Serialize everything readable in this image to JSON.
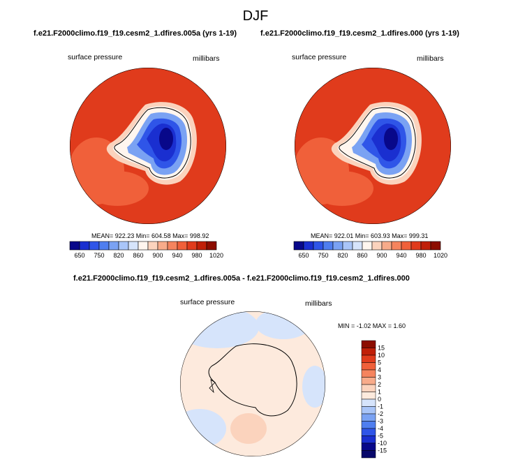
{
  "season": "DJF",
  "top_left": {
    "title": "f.e21.F2000climo.f19_f19.cesm2_1.dfires.005a (yrs 1-19)",
    "variable": "surface pressure",
    "units": "millibars",
    "stats": "MEAN= 922.23   Min= 604.58   Max= 998.92"
  },
  "top_right": {
    "title": "f.e21.F2000climo.f19_f19.cesm2_1.dfires.000 (yrs 1-19)",
    "variable": "surface pressure",
    "units": "millibars",
    "stats": "MEAN= 922.01   Min= 603.93   Max= 999.31"
  },
  "difference": {
    "title": "f.e21.F2000climo.f19_f19.cesm2_1.dfires.005a - f.e21.F2000climo.f19_f19.cesm2_1.dfires.000",
    "variable": "surface pressure",
    "units": "millibars",
    "stats": "MIN =  -1.02  MAX =   1.60"
  },
  "colorbar_main": {
    "labels": [
      "650",
      "750",
      "820",
      "860",
      "900",
      "940",
      "980",
      "1020"
    ],
    "colors": [
      "#08088a",
      "#1a2fd0",
      "#2f55e8",
      "#4f7eef",
      "#7aa2f3",
      "#a9c5f8",
      "#d6e4fb",
      "#fff6ef",
      "#fbd3bd",
      "#f8ab8a",
      "#f5845e",
      "#f0603a",
      "#e03b1c",
      "#c01f08",
      "#8c0d00"
    ]
  },
  "colorbar_diff": {
    "labels": [
      "15",
      "10",
      "5",
      "4",
      "3",
      "2",
      "1",
      "0",
      "-1",
      "-2",
      "-3",
      "-4",
      "-5",
      "-10",
      "-15"
    ],
    "colors": [
      "#8c0d00",
      "#c01f08",
      "#e03b1c",
      "#f0603a",
      "#f5845e",
      "#f8ab8a",
      "#fbd3bd",
      "#fdeadd",
      "#d6e4fb",
      "#a9c5f8",
      "#7aa2f3",
      "#4f7eef",
      "#2f55e8",
      "#1a2fd0",
      "#08088a",
      "#08086a"
    ]
  }
}
